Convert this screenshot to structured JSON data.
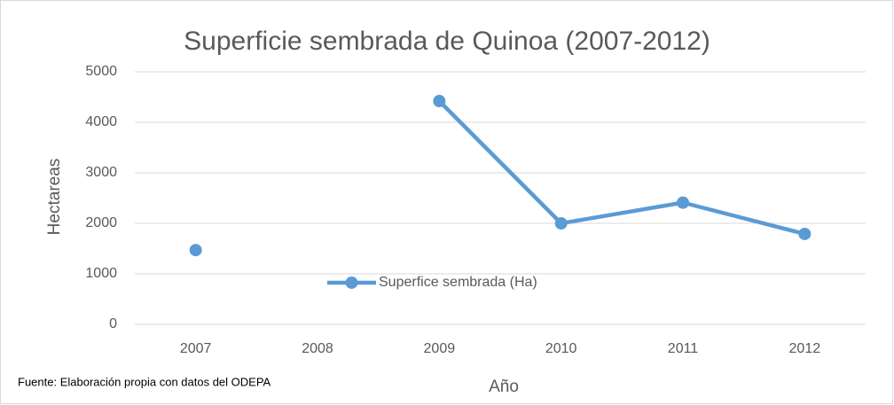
{
  "chart_data": {
    "type": "line",
    "title": "Superficie sembrada de Quinoa (2007-2012)",
    "x_label": "Año",
    "y_label": "Hectareas",
    "footnote": "Fuente: Elaboración propia con datos del  ODEPA",
    "categories": [
      "2007",
      "2008",
      "2009",
      "2010",
      "2011",
      "2012"
    ],
    "series": [
      {
        "name": "Superfice sembrada (Ha)",
        "color": "#5b9bd5",
        "values": [
          1470,
          null,
          4420,
          2000,
          2410,
          1790
        ]
      }
    ],
    "ylim": [
      0,
      5000
    ],
    "yticks": [
      0,
      1000,
      2000,
      3000,
      4000,
      5000
    ],
    "grid": true,
    "legend_position": "center"
  }
}
